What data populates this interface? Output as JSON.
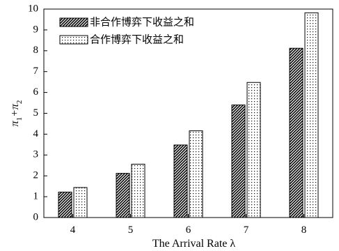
{
  "chart_data": {
    "type": "bar",
    "title": "",
    "xlabel": "The Arrival Rate λ",
    "ylabel": "π1+π2",
    "categories": [
      "4",
      "5",
      "6",
      "7",
      "8"
    ],
    "ylim": [
      0,
      10
    ],
    "yticks": [
      "0",
      "1",
      "2",
      "3",
      "4",
      "5",
      "6",
      "7",
      "8",
      "9",
      "10"
    ],
    "legend_position": "top-left",
    "series": [
      {
        "name": "非合作博弈下收益之和",
        "values": [
          1.22,
          2.12,
          3.48,
          5.4,
          8.12
        ],
        "pattern": "diagonal-hatch"
      },
      {
        "name": "合作博弈下收益之和",
        "values": [
          1.44,
          2.56,
          4.16,
          6.48,
          9.82
        ],
        "pattern": "dots"
      }
    ]
  }
}
